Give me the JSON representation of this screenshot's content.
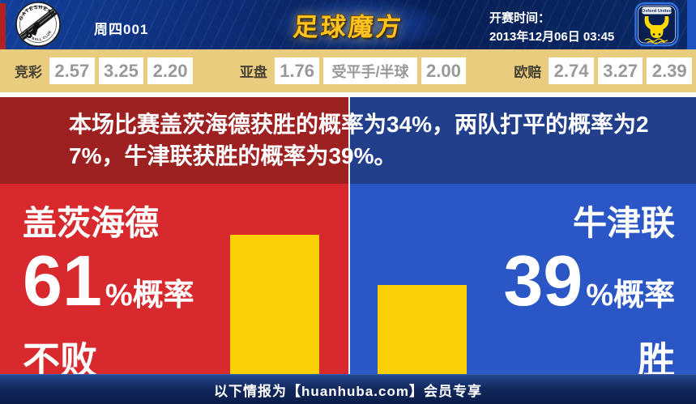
{
  "header": {
    "match_code": "周四001",
    "site_logo": "足球魔方",
    "kickoff_label": "开赛时间：",
    "kickoff_time": "2013年12月06日 03:45",
    "home_badge": {
      "name": "GATESHEAD",
      "sub": "FOOTBALL CLUB"
    },
    "away_badge": {
      "name": "Oxford United"
    }
  },
  "odds": {
    "jingcai": {
      "label": "竞彩",
      "values": [
        "2.57",
        "3.25",
        "2.20"
      ]
    },
    "yapan": {
      "label": "亚盘",
      "home": "1.76",
      "handicap": "受平手/半球",
      "away": "2.00"
    },
    "oupei": {
      "label": "欧赔",
      "values": [
        "2.74",
        "3.27",
        "2.39"
      ]
    }
  },
  "summary": {
    "text": "本场比赛盖茨海德获胜的概率为34%，两队打平的概率为27%，牛津联获胜的概率为39%。"
  },
  "duel": {
    "home": {
      "name": "盖茨海德",
      "value": "61",
      "percent": 61,
      "unit": "%概率",
      "result": "不败"
    },
    "away": {
      "name": "牛津联",
      "value": "39",
      "percent": 39,
      "unit": "%概率",
      "result": "胜"
    }
  },
  "footer": {
    "text": "以下情报为【huanhuba.com】会员专享"
  },
  "colors": {
    "topbar_navy": "#0a2a68",
    "logo_gold": "#ffc41f",
    "odds_bg": "#e9cc7d",
    "dark_red": "#9e2121",
    "dark_blue": "#213f8b",
    "home_red": "#d7292e",
    "away_blue": "#2a57c5",
    "bar_yellow": "#fbd106"
  },
  "chart_data": {
    "type": "bar",
    "categories": [
      "盖茨海德 不败",
      "牛津联 胜"
    ],
    "values": [
      61,
      39
    ],
    "unit": "%",
    "bar_color": "#fbd106"
  }
}
